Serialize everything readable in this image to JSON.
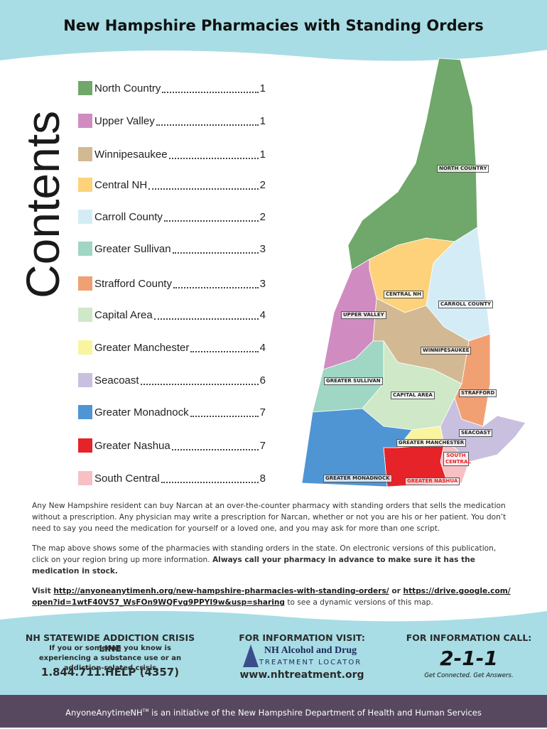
{
  "header": {
    "title": "New Hampshire Pharmacies with Standing Orders"
  },
  "contents": {
    "label": "Contents",
    "items": [
      {
        "name": "North Country",
        "page": "1",
        "color": "#6fa86a"
      },
      {
        "name": "Upper Valley",
        "page": "1",
        "color": "#d08cc0"
      },
      {
        "name": "Winnipesaukee",
        "page": "1",
        "color": "#d2b994"
      },
      {
        "name": "Central NH",
        "page": "2",
        "color": "#fdd27a"
      },
      {
        "name": "Carroll County",
        "page": "2",
        "color": "#d4ecf5"
      },
      {
        "name": "Greater Sullivan",
        "page": "3",
        "color": "#9fd6c4"
      },
      {
        "name": "Strafford County",
        "page": "3",
        "color": "#f1a073"
      },
      {
        "name": "Capital Area",
        "page": "4",
        "color": "#cfe8c8"
      },
      {
        "name": "Greater Manchester",
        "page": "4",
        "color": "#f9f49e"
      },
      {
        "name": "Seacoast",
        "page": "6",
        "color": "#c9c0e0"
      },
      {
        "name": "Greater Monadnock",
        "page": "7",
        "color": "#4f95d3"
      },
      {
        "name": "Greater Nashua",
        "page": "7",
        "color": "#e52328"
      },
      {
        "name": "South Central",
        "page": "8",
        "color": "#f6c0c4"
      }
    ]
  },
  "map": {
    "labels": {
      "north_country": "NORTH COUNTRY",
      "central_nh": "CENTRAL NH",
      "carroll_county": "CARROLL COUNTY",
      "upper_valley": "UPPER VALLEY",
      "winnipesaukee": "WINNIPESAUKEE",
      "greater_sullivan": "GREATER SULLIVAN",
      "capital_area": "CAPITAL AREA",
      "strafford": "STRAFFORD",
      "seacoast": "SEACOAST",
      "greater_manchester": "GREATER MANCHESTER",
      "south_central": "SOUTH CENTRAL",
      "greater_monadnock": "GREATER MONADNOCK",
      "greater_nashua": "GREATER NASHUA"
    }
  },
  "body": {
    "p1": "Any New Hampshire resident can buy Narcan at an over-the-counter pharmacy with standing orders that sells the medication without a prescription. Any physician may write a prescription for Narcan, whether or not you are his or her patient. You don’t need to say you need the medication for yourself or a loved one, and you may ask for more than one script.",
    "p2": "The map above shows some of the pharmacies with standing orders in the state. On electronic versions of this publication, click on your region bring up more information. ",
    "p2_bold": "Always call your pharmacy in advance to make sure it has the medication in stock.",
    "p3_visit": "Visit ",
    "p3_link1": "http://anyoneanytimenh.org/new-hampshire-pharmacies-with-standing-orders/",
    "p3_or": " or ",
    "p3_link2": "https://drive.google.com/open?id=1wtF40V57_WsFOn9WQFvg9PPYI9w&usp=sharing",
    "p3_end": " to see a dynamic versions of this map."
  },
  "footer": {
    "crisis_title": "NH STATEWIDE ADDICTION CRISIS LINE",
    "crisis_sub": "If you or someone you know is experiencing a substance use or an addiction-related crisis",
    "crisis_phone": "1.844.711.HELP (4357)",
    "visit_title": "FOR INFORMATION VISIT:",
    "visit_logo": "NH Alcohol and Drug",
    "visit_logo_sub": "TREATMENT LOCATOR",
    "visit_url": "www.nhtreatment.org",
    "call_title": "FOR INFORMATION CALL:",
    "call_logo": "2-1-1",
    "call_tagline": "Get Connected. Get Answers.",
    "bar_brand": "AnyoneAnytimeNH",
    "bar_tm": "TM",
    "bar_text": " is an initiative of the New Hampshire Department of Health and Human Services"
  }
}
